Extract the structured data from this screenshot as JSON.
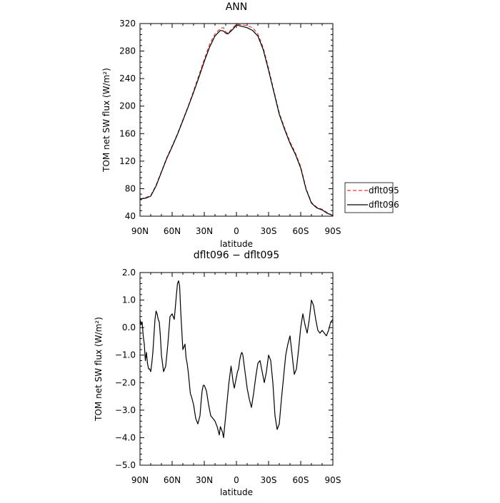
{
  "chart_data": [
    {
      "type": "line",
      "title": "ANN",
      "xlabel": "latitude",
      "ylabel": "TOM net SW flux (W/m²)",
      "xlim": [
        90,
        -90
      ],
      "ylim": [
        40,
        320
      ],
      "xticks": [
        90,
        60,
        30,
        0,
        -30,
        -60,
        -90
      ],
      "xtick_labels": [
        "90N",
        "60N",
        "30N",
        "0",
        "30S",
        "60S",
        "90S"
      ],
      "yticks": [
        40,
        80,
        120,
        160,
        200,
        240,
        280,
        320
      ],
      "ytick_labels": [
        "40",
        "80",
        "120",
        "160",
        "200",
        "240",
        "280",
        "320"
      ],
      "legend": "outside-right",
      "series": [
        {
          "name": "dflt095",
          "color": "#e03a3a",
          "dash": "dashed",
          "x": [
            90,
            85,
            80,
            75,
            70,
            65,
            60,
            55,
            50,
            45,
            40,
            35,
            30,
            25,
            20,
            15,
            12,
            10,
            8,
            5,
            2,
            0,
            -5,
            -10,
            -15,
            -20,
            -25,
            -30,
            -35,
            -40,
            -45,
            -50,
            -55,
            -60,
            -65,
            -70,
            -75,
            -80,
            -85,
            -90
          ],
          "y": [
            65,
            67,
            70,
            85,
            105,
            125,
            142,
            160,
            180,
            200,
            222,
            245,
            268,
            290,
            305,
            313,
            314,
            308,
            306,
            311,
            316,
            319,
            318,
            317,
            314,
            305,
            285,
            255,
            222,
            190,
            168,
            148,
            132,
            112,
            80,
            60,
            53,
            50,
            45,
            41
          ]
        },
        {
          "name": "dflt096",
          "color": "#000000",
          "dash": "solid",
          "x": [
            90,
            85,
            80,
            75,
            70,
            65,
            60,
            55,
            50,
            45,
            40,
            35,
            30,
            25,
            20,
            15,
            12,
            10,
            8,
            5,
            2,
            0,
            -5,
            -10,
            -15,
            -20,
            -25,
            -30,
            -35,
            -40,
            -45,
            -50,
            -55,
            -60,
            -65,
            -70,
            -75,
            -80,
            -85,
            -90
          ],
          "y": [
            65,
            66,
            69,
            84,
            104,
            124,
            141,
            159,
            179,
            199,
            220,
            242,
            265,
            286,
            302,
            310,
            309,
            306,
            305,
            309,
            314,
            318,
            316,
            314,
            310,
            302,
            282,
            252,
            220,
            188,
            166,
            146,
            130,
            110,
            79,
            59,
            52,
            49,
            44,
            41
          ]
        }
      ]
    },
    {
      "type": "line",
      "title": "dflt096 − dflt095",
      "xlabel": "latitude",
      "ylabel": "TOM net SW flux (W/m²)",
      "xlim": [
        90,
        -90
      ],
      "ylim": [
        -5,
        2
      ],
      "xticks": [
        90,
        60,
        30,
        0,
        -30,
        -60,
        -90
      ],
      "xtick_labels": [
        "90N",
        "60N",
        "30N",
        "0",
        "30S",
        "60S",
        "90S"
      ],
      "yticks": [
        -5,
        -4,
        -3,
        -2,
        -1,
        0,
        1,
        2
      ],
      "ytick_labels": [
        "−5.0",
        "−4.0",
        "−3.0",
        "−2.0",
        "−1.0",
        "0.0",
        "1.0",
        "2.0"
      ],
      "series": [
        {
          "color": "#000000",
          "dash": "solid",
          "x": [
            90,
            89,
            88,
            87,
            86,
            85,
            84,
            83,
            82,
            81,
            80,
            79,
            78,
            77,
            76,
            75,
            74,
            73,
            72,
            71,
            70,
            68,
            66,
            64,
            62,
            60,
            58,
            56,
            55,
            54,
            53,
            52,
            50,
            48,
            47,
            46,
            45,
            44,
            43,
            42,
            40,
            38,
            36,
            34,
            33,
            32,
            31,
            30,
            28,
            26,
            24,
            22,
            20,
            18,
            16,
            15,
            14,
            13,
            12,
            11,
            10,
            9,
            8,
            7,
            6,
            5,
            4,
            3,
            2,
            1,
            0,
            -1,
            -2,
            -3,
            -4,
            -5,
            -6,
            -7,
            -8,
            -10,
            -12,
            -14,
            -16,
            -18,
            -20,
            -22,
            -24,
            -26,
            -28,
            -30,
            -32,
            -34,
            -36,
            -38,
            -40,
            -42,
            -44,
            -46,
            -48,
            -50,
            -52,
            -54,
            -56,
            -58,
            -60,
            -62,
            -64,
            -66,
            -68,
            -70,
            -72,
            -74,
            -76,
            -78,
            -80,
            -82,
            -84,
            -86,
            -88,
            -90
          ],
          "y": [
            0.3,
            0.1,
            0.2,
            -0.3,
            -0.6,
            -1.2,
            -0.9,
            -1.3,
            -1.5,
            -1.5,
            -1.6,
            -1.3,
            -0.9,
            -0.3,
            0.3,
            0.6,
            0.5,
            0.3,
            0.2,
            -0.3,
            -1.0,
            -1.6,
            -1.4,
            -0.6,
            0.4,
            0.5,
            0.3,
            1.2,
            1.6,
            1.7,
            1.5,
            0.6,
            -0.8,
            -0.6,
            -1.1,
            -1.3,
            -1.6,
            -2.0,
            -2.4,
            -2.5,
            -2.8,
            -3.3,
            -3.5,
            -3.2,
            -2.7,
            -2.3,
            -2.1,
            -2.1,
            -2.3,
            -2.8,
            -3.2,
            -3.3,
            -3.4,
            -3.6,
            -3.9,
            -3.6,
            -3.7,
            -3.8,
            -4.0,
            -3.6,
            -3.2,
            -2.8,
            -2.4,
            -2.0,
            -1.7,
            -1.4,
            -1.7,
            -2.0,
            -2.2,
            -2.0,
            -1.8,
            -1.6,
            -1.5,
            -1.2,
            -1.0,
            -0.9,
            -1.0,
            -1.3,
            -1.6,
            -2.2,
            -2.6,
            -2.9,
            -2.4,
            -1.8,
            -1.3,
            -1.2,
            -1.6,
            -2.0,
            -1.6,
            -1.0,
            -1.2,
            -2.0,
            -3.2,
            -3.7,
            -3.5,
            -2.6,
            -1.8,
            -1.0,
            -0.6,
            -0.3,
            -1.0,
            -1.7,
            -1.5,
            -0.8,
            0.0,
            0.5,
            0.1,
            -0.2,
            0.3,
            1.0,
            0.8,
            0.3,
            -0.1,
            -0.2,
            -0.1,
            -0.2,
            -0.3,
            -0.1,
            0.2,
            0.3
          ]
        }
      ]
    }
  ]
}
